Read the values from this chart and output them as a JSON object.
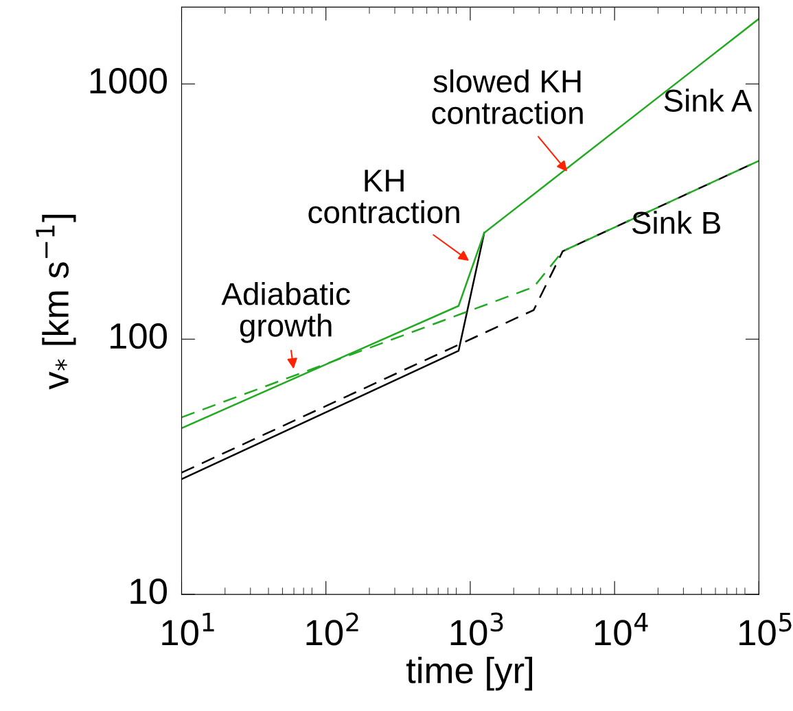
{
  "chart_data": {
    "type": "line",
    "xlabel": "time [yr]",
    "ylabel": "v$_{*}$ [km s$^{−1}$]",
    "log": "xy",
    "grid": false,
    "xlim": [
      10,
      100000
    ],
    "ylim": [
      10,
      2000
    ],
    "xticks": [
      {
        "value": 10,
        "label": "10$^{1}$"
      },
      {
        "value": 100,
        "label": "10$^{2}$"
      },
      {
        "value": 1000,
        "label": "10$^{3}$"
      },
      {
        "value": 10000,
        "label": "10$^{4}$"
      },
      {
        "value": 100000,
        "label": "10$^{5}$"
      }
    ],
    "yticks": [
      10,
      100,
      1000
    ],
    "series": [
      {
        "color": "#000000",
        "line_style": "solid",
        "x": [
          10,
          830,
          1250
        ],
        "values": [
          28.3,
          90,
          261
        ]
      },
      {
        "color": "#000000",
        "line_style": "dashed",
        "x": [
          10,
          2750,
          4370,
          100000
        ],
        "values": [
          30,
          130,
          221,
          500
        ]
      },
      {
        "color": "#22aa22",
        "line_style": "dashed",
        "x": [
          10,
          2750,
          4370,
          100000
        ],
        "values": [
          49.4,
          160,
          221,
          500
        ]
      },
      {
        "color": "#22aa22",
        "line_style": "solid",
        "x": [
          10,
          830,
          1250,
          100000
        ],
        "values": [
          44.8,
          135,
          261,
          1800
        ]
      }
    ],
    "annotations": [
      "Adiabatic\ngrowth",
      "KH\ncontraction",
      "slowed KH\ncontraction",
      "Sink A",
      "Sink B"
    ]
  }
}
